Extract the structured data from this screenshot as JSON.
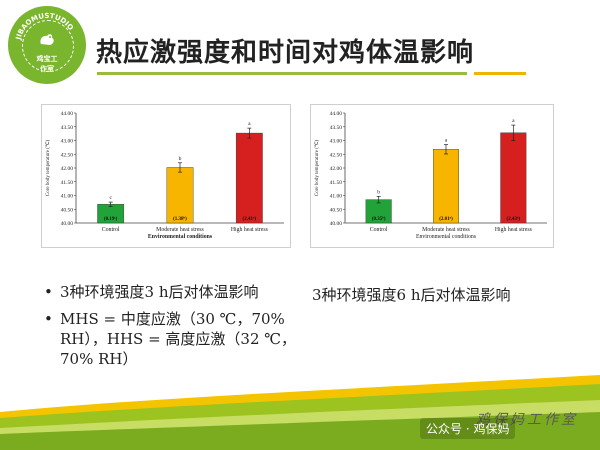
{
  "logo": {
    "ring_text": "JIBAOMUSTUDIO",
    "sub_text": "鸡宝工作室"
  },
  "title": "热应激强度和时间对鸡体温影响",
  "colors": {
    "control": "#22a33a",
    "moderate": "#f7b500",
    "high": "#d62020",
    "accent_green": "#9bbb3c",
    "accent_yellow": "#f0b400"
  },
  "chart_data": [
    {
      "type": "bar",
      "categories": [
        "Control",
        "Moderate heat stress",
        "High heat stress"
      ],
      "values": [
        40.68,
        42.02,
        43.27
      ],
      "errors": [
        0.08,
        0.17,
        0.18
      ],
      "letters": [
        "c",
        "b",
        "a"
      ],
      "bar_labels": [
        "(0.19ᶜ)",
        "(1.38ᵇ)",
        "(2.41ᵃ)"
      ],
      "ylabel": "Core body temperature (℃)",
      "xlabel": "Environmental conditions",
      "ylim": [
        40.0,
        44.0
      ],
      "yticks": [
        "40.00",
        "40.50",
        "41.00",
        "41.50",
        "42.00",
        "42.50",
        "43.00",
        "43.50",
        "44.00"
      ]
    },
    {
      "type": "bar",
      "categories": [
        "Control",
        "Moderate heat stress",
        "High heat stress"
      ],
      "values": [
        40.85,
        42.68,
        43.28
      ],
      "errors": [
        0.12,
        0.17,
        0.28
      ],
      "letters": [
        "b",
        "a",
        "a"
      ],
      "bar_labels": [
        "(0.35ᵇ)",
        "(2.01ᵃ)",
        "(2.43ᵃ)"
      ],
      "ylabel": "Core body temperature (℃)",
      "xlabel": "Environmental conditions",
      "ylim": [
        40.0,
        44.0
      ],
      "yticks": [
        "40.00",
        "40.50",
        "41.00",
        "41.50",
        "42.00",
        "42.50",
        "43.00",
        "43.50",
        "44.00"
      ]
    }
  ],
  "bullets": [
    "3种环境强度3 h后对体温影响",
    "MHS = 中度应激（30 ℃，70% RH），HHS = 高度应激（32 ℃，70% RH）"
  ],
  "caption_right": "3种环境强度6 h后对体温影响",
  "footer": {
    "brand": "鸡保妈工作室",
    "wechat": "公众号 · 鸡保妈"
  }
}
